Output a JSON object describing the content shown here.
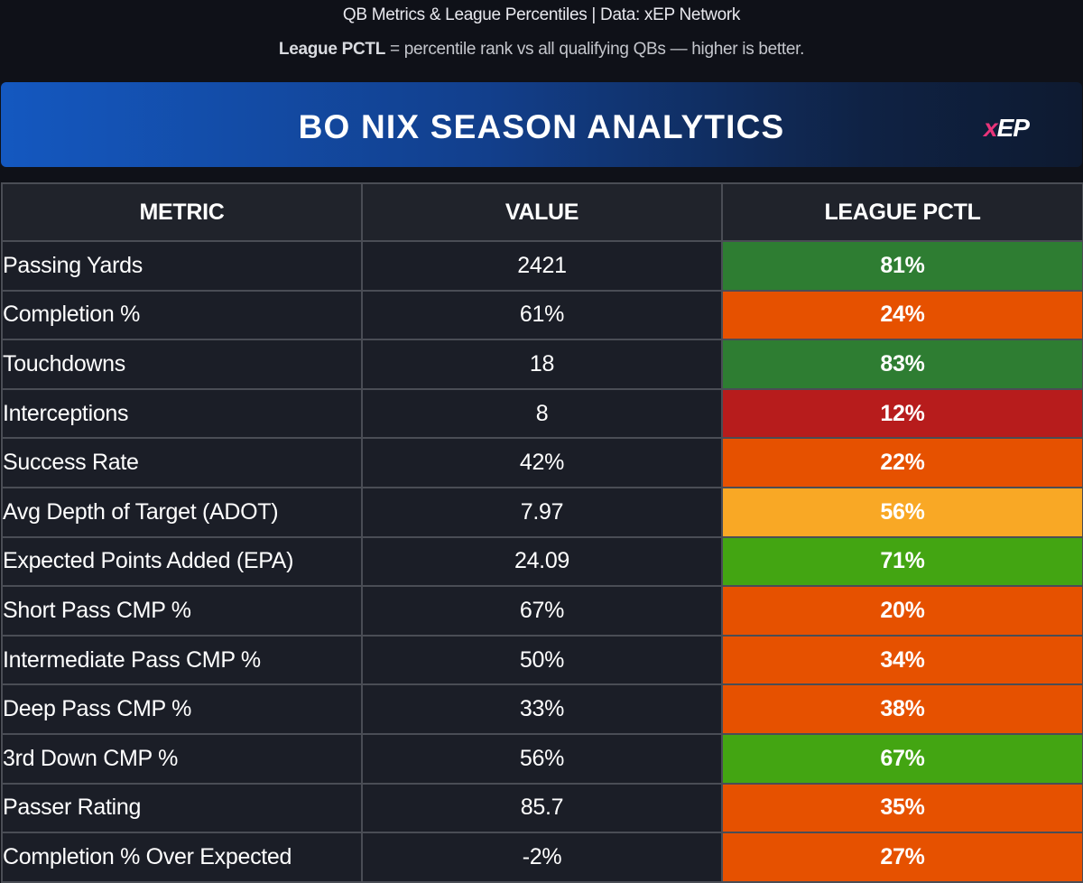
{
  "header": {
    "subtitle": "QB Metrics & League Percentiles | Data: xEP Network",
    "legend_term": "League PCTL",
    "legend_text": " = percentile rank vs all qualifying QBs — higher is better."
  },
  "banner": {
    "title": "BO NIX SEASON ANALYTICS",
    "brand_x": "x",
    "brand_ep": "EP"
  },
  "table": {
    "columns": [
      "METRIC",
      "VALUE",
      "LEAGUE PCTL"
    ],
    "rows": [
      {
        "metric": "Passing Yards",
        "value": "2421",
        "pctl": "81%",
        "color": "#2e7d32"
      },
      {
        "metric": "Completion %",
        "value": "61%",
        "pctl": "24%",
        "color": "#e65100"
      },
      {
        "metric": "Touchdowns",
        "value": "18",
        "pctl": "83%",
        "color": "#2e7d32"
      },
      {
        "metric": "Interceptions",
        "value": "8",
        "pctl": "12%",
        "color": "#b71c1c"
      },
      {
        "metric": "Success Rate",
        "value": "42%",
        "pctl": "22%",
        "color": "#e65100"
      },
      {
        "metric": "Avg Depth of Target (ADOT)",
        "value": "7.97",
        "pctl": "56%",
        "color": "#f9a825"
      },
      {
        "metric": "Expected Points Added (EPA)",
        "value": "24.09",
        "pctl": "71%",
        "color": "#43a512"
      },
      {
        "metric": "Short Pass CMP %",
        "value": "67%",
        "pctl": "20%",
        "color": "#e65100"
      },
      {
        "metric": "Intermediate Pass CMP %",
        "value": "50%",
        "pctl": "34%",
        "color": "#e65100"
      },
      {
        "metric": "Deep Pass CMP %",
        "value": "33%",
        "pctl": "38%",
        "color": "#e65100"
      },
      {
        "metric": "3rd Down CMP %",
        "value": "56%",
        "pctl": "67%",
        "color": "#43a512"
      },
      {
        "metric": "Passer Rating",
        "value": "85.7",
        "pctl": "35%",
        "color": "#e65100"
      },
      {
        "metric": "Completion % Over Expected",
        "value": "-2%",
        "pctl": "27%",
        "color": "#e65100"
      }
    ]
  }
}
